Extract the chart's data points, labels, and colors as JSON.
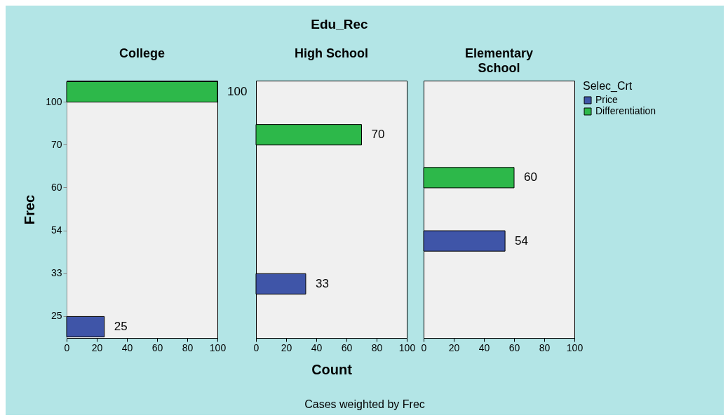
{
  "chart_data": [
    {
      "type": "bar",
      "orientation": "horizontal",
      "subtitle": "College",
      "ylabel": "Frec",
      "categories": [
        "100",
        "70",
        "60",
        "54",
        "33",
        "25"
      ],
      "series": [
        {
          "color": "#3f55a8",
          "values": [
            null,
            null,
            null,
            null,
            null,
            25
          ]
        },
        {
          "color": "#2db84a",
          "values": [
            100,
            null,
            null,
            null,
            null,
            null
          ]
        }
      ],
      "xlim": [
        0,
        100
      ],
      "xticks": [
        0,
        20,
        40,
        60,
        80,
        100
      ],
      "data_labels": true,
      "grid": false,
      "legend": false
    },
    {
      "type": "bar",
      "orientation": "horizontal",
      "title": "Edu_Rec",
      "subtitle": "High School",
      "xlabel": "Count",
      "categories": [
        "100",
        "70",
        "60",
        "54",
        "33",
        "25"
      ],
      "series": [
        {
          "color": "#3f55a8",
          "values": [
            null,
            null,
            null,
            null,
            33,
            null
          ]
        },
        {
          "color": "#2db84a",
          "values": [
            null,
            70,
            null,
            null,
            null,
            null
          ]
        }
      ],
      "xlim": [
        0,
        100
      ],
      "xticks": [
        0,
        20,
        40,
        60,
        80,
        100
      ],
      "data_labels": true,
      "grid": false,
      "legend": false,
      "tick_labels": "x",
      "annotations": [
        "Cases weighted by Frec"
      ]
    },
    {
      "type": "bar",
      "orientation": "horizontal",
      "subtitle": "Elementary School",
      "legend_title": "Selec_Crt",
      "categories": [
        "100",
        "70",
        "60",
        "54",
        "33",
        "25"
      ],
      "series": [
        {
          "name": "Price",
          "color": "#3f55a8",
          "values": [
            null,
            null,
            null,
            54,
            null,
            null
          ]
        },
        {
          "name": "Differentiation",
          "color": "#2db84a",
          "values": [
            null,
            null,
            60,
            null,
            null,
            null
          ]
        }
      ],
      "xlim": [
        0,
        100
      ],
      "xticks": [
        0,
        20,
        40,
        60,
        80,
        100
      ],
      "data_labels": true,
      "grid": false,
      "legend": "top right",
      "tick_labels": "x"
    }
  ]
}
